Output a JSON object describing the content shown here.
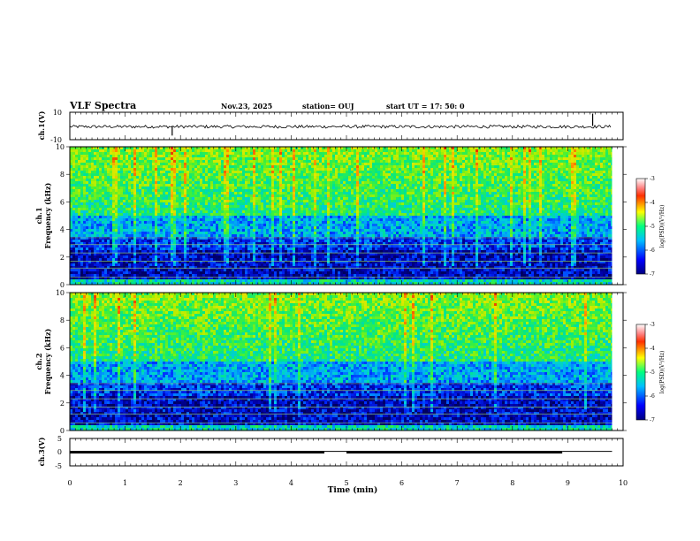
{
  "header": {
    "title": "VLF Spectra",
    "date": "Nov.23, 2025",
    "station": "station= OUJ",
    "start_ut": "start  UT  =   17: 50: 0"
  },
  "chart_data": [
    {
      "type": "line",
      "panel": "ch1-waveform",
      "ylabel": "ch.1(V)",
      "ylim": [
        -10,
        10
      ],
      "yticks": [
        "10",
        "-10"
      ],
      "x": [
        0,
        1,
        2,
        3,
        4,
        5,
        6,
        7,
        8,
        9,
        9.8
      ],
      "values": [
        0,
        0,
        0,
        0,
        0,
        0,
        0,
        0,
        0,
        0,
        0
      ],
      "spikes": [
        {
          "x": 1.85,
          "y": -7
        },
        {
          "x": 9.45,
          "y": 9
        }
      ],
      "description": "noise band around -0.5 V"
    },
    {
      "type": "heatmap",
      "panel": "ch1-spectrogram",
      "ylabel": "ch.1 Frequency (kHz)",
      "ylim": [
        0,
        10
      ],
      "yticks": [
        "0",
        "2",
        "4",
        "6",
        "8",
        "10"
      ],
      "colorbar": {
        "label": "log(PSD)(V²/Hz)",
        "ticks": [
          "-3",
          "-4",
          "-5",
          "-6",
          "-7"
        ],
        "range": [
          -7,
          -3
        ]
      }
    },
    {
      "type": "heatmap",
      "panel": "ch2-spectrogram",
      "ylabel": "ch.2 Frequency (kHz)",
      "ylim": [
        0,
        10
      ],
      "yticks": [
        "0",
        "2",
        "4",
        "6",
        "8",
        "10"
      ],
      "colorbar": {
        "label": "log(PSD)(V²/Hz)",
        "ticks": [
          "-3",
          "-4",
          "-5",
          "-6",
          "-7"
        ],
        "range": [
          -7,
          -3
        ]
      }
    },
    {
      "type": "line",
      "panel": "ch3-trace",
      "ylabel": "ch.3(V)",
      "ylim": [
        -5,
        5
      ],
      "yticks": [
        "5",
        "0",
        "-5"
      ],
      "segments": [
        {
          "x": [
            0,
            4.6
          ],
          "y": 0
        },
        {
          "x": 4.6,
          "y": 0.3
        },
        {
          "x": [
            5.0,
            8.9
          ],
          "y": 0
        },
        {
          "x": [
            8.9,
            9.8
          ],
          "y": 0.3
        }
      ]
    }
  ],
  "xaxis": {
    "label": "Time  (min)",
    "xlim": [
      0,
      10
    ],
    "ticks": [
      "0",
      "1",
      "2",
      "3",
      "4",
      "5",
      "6",
      "7",
      "8",
      "9",
      "10"
    ]
  }
}
